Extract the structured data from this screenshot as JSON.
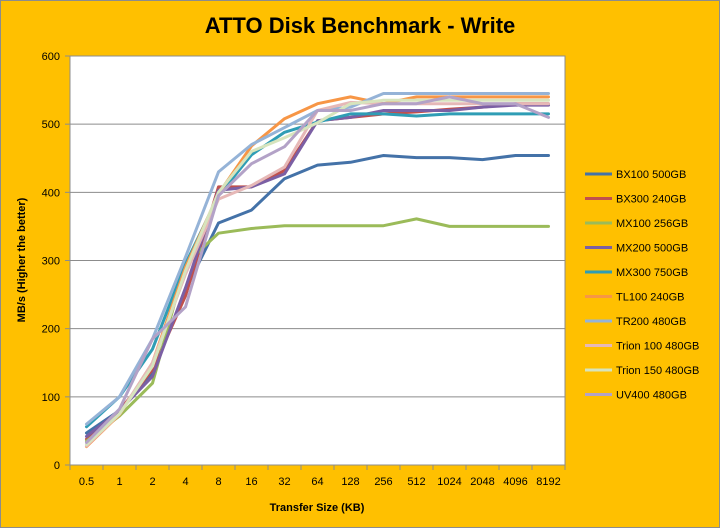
{
  "chart_data": {
    "type": "line",
    "title": "ATTO Disk Benchmark - Write",
    "xlabel": "Transfer Size (KB)",
    "ylabel": "MB/s (Higher the better)",
    "ylim": [
      0,
      600
    ],
    "yticks": [
      0,
      100,
      200,
      300,
      400,
      500,
      600
    ],
    "grid": true,
    "legend_position": "right",
    "categories": [
      "0.5",
      "1",
      "2",
      "4",
      "8",
      "16",
      "32",
      "64",
      "128",
      "256",
      "512",
      "1024",
      "2048",
      "4096",
      "8192"
    ],
    "series": [
      {
        "name": "BX100 500GB",
        "color": "#4472a8",
        "values": [
          47,
          80,
          134,
          257,
          355,
          374,
          420,
          440,
          444,
          454,
          451,
          451,
          448,
          454,
          454
        ]
      },
      {
        "name": "BX300 240GB",
        "color": "#c0504d",
        "values": [
          38,
          80,
          140,
          248,
          408,
          408,
          432,
          505,
          510,
          515,
          518,
          522,
          525,
          530,
          530
        ]
      },
      {
        "name": "MX100 256GB",
        "color": "#9bbb59",
        "values": [
          35,
          72,
          120,
          295,
          340,
          347,
          351,
          351,
          351,
          351,
          361,
          350,
          350,
          350,
          350
        ]
      },
      {
        "name": "MX200 500GB",
        "color": "#7b5fa4",
        "values": [
          42,
          80,
          130,
          260,
          403,
          408,
          427,
          505,
          510,
          520,
          520,
          520,
          525,
          528,
          528
        ]
      },
      {
        "name": "MX300 750GB",
        "color": "#2f9db5",
        "values": [
          56,
          100,
          170,
          295,
          395,
          455,
          488,
          503,
          515,
          515,
          512,
          515,
          515,
          515,
          515
        ]
      },
      {
        "name": "TL100 240GB",
        "color": "#f79646",
        "values": [
          27,
          74,
          150,
          290,
          398,
          468,
          508,
          530,
          540,
          530,
          540,
          540,
          540,
          540,
          540
        ]
      },
      {
        "name": "TR200 480GB",
        "color": "#95b3d7",
        "values": [
          60,
          100,
          185,
          305,
          430,
          470,
          495,
          520,
          525,
          545,
          545,
          545,
          545,
          545,
          545
        ]
      },
      {
        "name": "Trion 100 480GB",
        "color": "#e6b8b7",
        "values": [
          28,
          75,
          150,
          280,
          390,
          410,
          437,
          520,
          532,
          530,
          530,
          530,
          530,
          530,
          530
        ]
      },
      {
        "name": "Trion 150 480GB",
        "color": "#d7e4bd",
        "values": [
          30,
          75,
          145,
          285,
          400,
          460,
          480,
          502,
          530,
          535,
          535,
          535,
          535,
          535,
          535
        ]
      },
      {
        "name": "UV400 480GB",
        "color": "#b3a2c7",
        "values": [
          33,
          82,
          185,
          232,
          395,
          442,
          467,
          520,
          520,
          530,
          530,
          540,
          530,
          530,
          510
        ]
      }
    ]
  }
}
